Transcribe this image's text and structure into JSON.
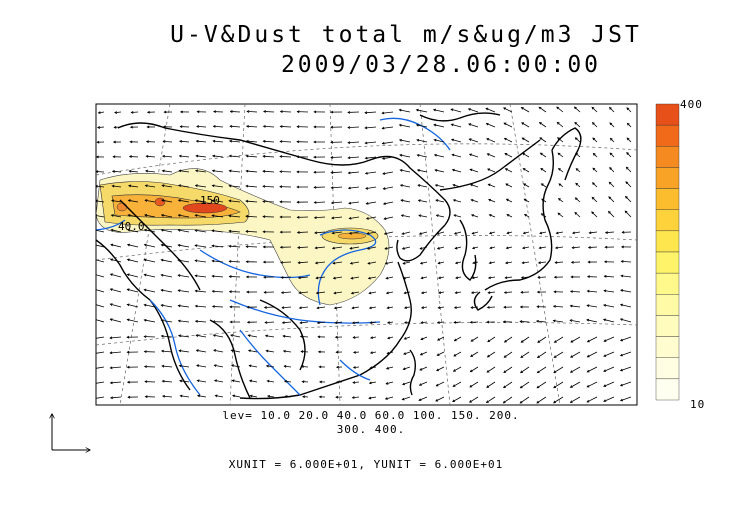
{
  "title": {
    "line1": "U-V&Dust total m/s&ug/m3 JST",
    "line2": "2009/03/28.06:00:00"
  },
  "colorbar": {
    "max_label": "400",
    "min_label": "10",
    "colors": [
      "#e8501a",
      "#f06a1a",
      "#f58a20",
      "#f8a326",
      "#fbbd2d",
      "#fdd23a",
      "#fee64f",
      "#fff36a",
      "#fff88a",
      "#fffaa6",
      "#fffcbd",
      "#fffdd0",
      "#fffee2",
      "#fffff0"
    ]
  },
  "contour_labels": {
    "label1": "150",
    "label2": "40.0"
  },
  "levels_text": {
    "line1": "lev= 10.0 20.0 40.0 60.0 100. 150. 200.",
    "line2": "300. 400."
  },
  "unit_text": "XUNIT = 6.000E+01, YUNIT = 6.000E+01",
  "colors": {
    "coast": "#000000",
    "river": "#1565e0",
    "plume_light": "#fbf6c4",
    "plume_mid": "#f5da6a",
    "plume_hot": "#e2461c"
  }
}
